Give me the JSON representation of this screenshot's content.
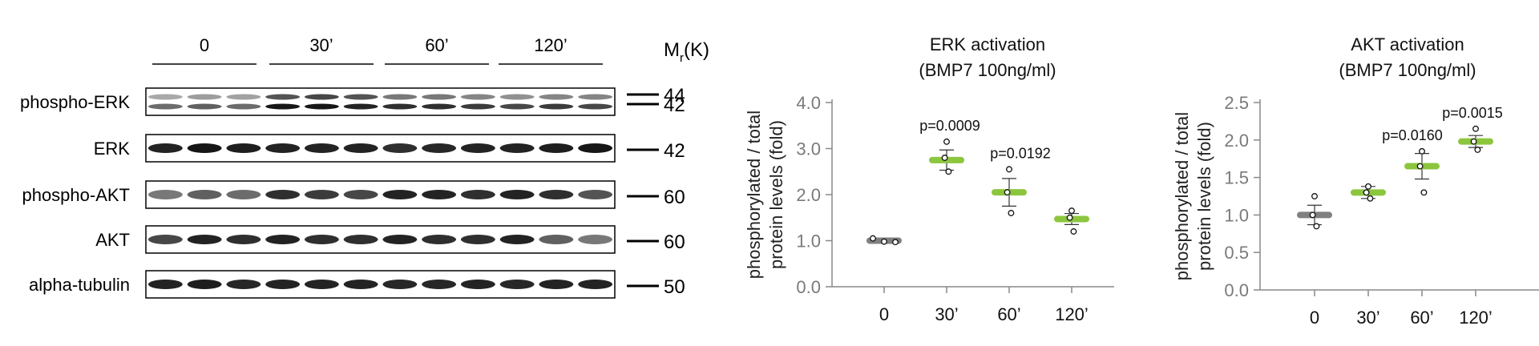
{
  "blot": {
    "timepoints": [
      "0",
      "30’",
      "60’",
      "120’"
    ],
    "mw_header": {
      "main": "M",
      "sub": "r",
      "rest": "(K)"
    },
    "rows": [
      {
        "label": "phospho-ERK",
        "markers": [
          "44",
          "42"
        ],
        "intensity": [
          [
            0.35,
            0.4,
            0.38,
            0.7,
            0.75,
            0.7,
            0.55,
            0.55,
            0.5,
            0.45,
            0.5,
            0.5
          ],
          [
            0.6,
            0.65,
            0.6,
            0.95,
            0.95,
            0.9,
            0.85,
            0.85,
            0.8,
            0.75,
            0.8,
            0.75
          ]
        ]
      },
      {
        "label": "ERK",
        "markers": [
          "42"
        ],
        "intensity": [
          [
            0.9,
            0.95,
            0.92,
            0.9,
            0.9,
            0.9,
            0.85,
            0.88,
            0.9,
            0.9,
            0.92,
            0.95
          ]
        ]
      },
      {
        "label": "phospho-AKT",
        "markers": [
          "60"
        ],
        "intensity": [
          [
            0.55,
            0.65,
            0.6,
            0.85,
            0.8,
            0.75,
            0.9,
            0.9,
            0.85,
            0.9,
            0.85,
            0.7
          ]
        ]
      },
      {
        "label": "AKT",
        "markers": [
          "60"
        ],
        "intensity": [
          [
            0.75,
            0.9,
            0.85,
            0.9,
            0.85,
            0.85,
            0.9,
            0.85,
            0.85,
            0.9,
            0.65,
            0.55
          ]
        ]
      },
      {
        "label": "alpha-tubulin",
        "markers": [
          "50"
        ],
        "intensity": [
          [
            0.9,
            0.92,
            0.88,
            0.9,
            0.9,
            0.9,
            0.88,
            0.88,
            0.9,
            0.88,
            0.9,
            0.9
          ]
        ]
      }
    ]
  },
  "chart_data": [
    {
      "type": "scatter",
      "title": [
        "ERK activation",
        "(BMP7 100ng/ml)"
      ],
      "ylabel": [
        "phosphorylated / total",
        "protein levels (fold)"
      ],
      "categories": [
        "0",
        "30’",
        "60’",
        "120’"
      ],
      "ylim": [
        0,
        4.0
      ],
      "yticks": [
        "4.0",
        "3.0",
        "2.0",
        "1.0",
        "0.0"
      ],
      "ytick_values": [
        4,
        3,
        2,
        1,
        0
      ],
      "means": [
        1.0,
        2.75,
        2.05,
        1.47
      ],
      "sem": [
        0.03,
        0.22,
        0.3,
        0.12
      ],
      "points": [
        [
          1.05,
          0.98,
          0.97
        ],
        [
          3.15,
          2.8,
          2.5
        ],
        [
          2.55,
          2.05,
          1.6
        ],
        [
          1.65,
          1.5,
          1.2
        ]
      ],
      "pvalues": [
        "",
        "p=0.0009",
        "p=0.0192",
        ""
      ],
      "colors": [
        "#808080",
        "#8cc63f",
        "#8cc63f",
        "#8cc63f"
      ]
    },
    {
      "type": "scatter",
      "title": [
        "AKT activation",
        "(BMP7 100ng/ml)"
      ],
      "ylabel": [
        "phosphorylated / total",
        "protein levels (fold)"
      ],
      "categories": [
        "0",
        "30’",
        "60’",
        "120’"
      ],
      "ylim": [
        0,
        2.5
      ],
      "yticks": [
        "2.5",
        "2.0",
        "1.5",
        "1.0",
        "0.5",
        "0.0"
      ],
      "ytick_values": [
        2.5,
        2.0,
        1.5,
        1.0,
        0.5,
        0.0
      ],
      "means": [
        1.0,
        1.3,
        1.65,
        1.98
      ],
      "sem": [
        0.13,
        0.08,
        0.17,
        0.08
      ],
      "points": [
        [
          1.25,
          1.0,
          0.85
        ],
        [
          1.38,
          1.3,
          1.22
        ],
        [
          1.85,
          1.65,
          1.3
        ],
        [
          2.15,
          1.98,
          1.87
        ]
      ],
      "pvalues": [
        "",
        "",
        "p=0.0160",
        "p=0.0015"
      ],
      "colors": [
        "#808080",
        "#8cc63f",
        "#8cc63f",
        "#8cc63f"
      ]
    }
  ]
}
